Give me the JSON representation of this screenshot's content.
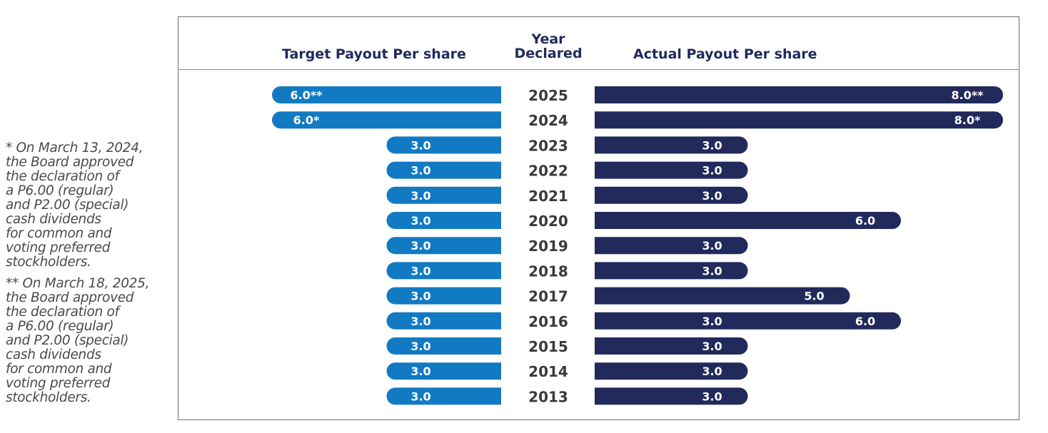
{
  "chart_data": {
    "type": "bar",
    "title": "",
    "headers": {
      "left": "Target Payout  Per share",
      "middle": [
        "Year",
        "Declared"
      ],
      "right": "Actual Payout Per share"
    },
    "categories": [
      "2025",
      "2024",
      "2023",
      "2022",
      "2021",
      "2020",
      "2019",
      "2018",
      "2017",
      "2016",
      "2015",
      "2014",
      "2013"
    ],
    "series": [
      {
        "name": "Target Payout  Per share",
        "values": [
          6.0,
          6.0,
          3.0,
          3.0,
          3.0,
          3.0,
          3.0,
          3.0,
          3.0,
          3.0,
          3.0,
          3.0,
          3.0
        ],
        "labels": [
          "6.0**",
          "6.0*",
          "3.0",
          "3.0",
          "3.0",
          "3.0",
          "3.0",
          "3.0",
          "3.0",
          "3.0",
          "3.0",
          "3.0",
          "3.0"
        ],
        "color": "#127ac3"
      },
      {
        "name": "Actual Payout Per share",
        "values": [
          8.0,
          8.0,
          3.0,
          3.0,
          3.0,
          6.0,
          3.0,
          3.0,
          5.0,
          6.0,
          3.0,
          3.0,
          3.0
        ],
        "labels": [
          "8.0**",
          "8.0*",
          "3.0",
          "3.0",
          "3.0",
          "6.0",
          "3.0",
          "3.0",
          "5.0",
          "6.0",
          "3.0",
          "3.0",
          "3.0"
        ],
        "extra_labels": [
          null,
          null,
          null,
          null,
          null,
          null,
          null,
          null,
          null,
          "3.0",
          null,
          null,
          null
        ],
        "color": "#222a5c"
      }
    ],
    "xlim": [
      0,
      8.0
    ],
    "legend": "none",
    "grid": false
  },
  "notes": [
    "* On March 13, 2024,\nthe Board approved\nthe declaration of\na P6.00 (regular)\nand P2.00 (special)\ncash dividends\nfor common and\nvoting preferred\nstockholders.",
    "** On March 18, 2025,\nthe Board approved\nthe declaration of\na P6.00 (regular)\nand P2.00 (special)\ncash dividends\nfor common and\nvoting preferred\nstockholders."
  ]
}
